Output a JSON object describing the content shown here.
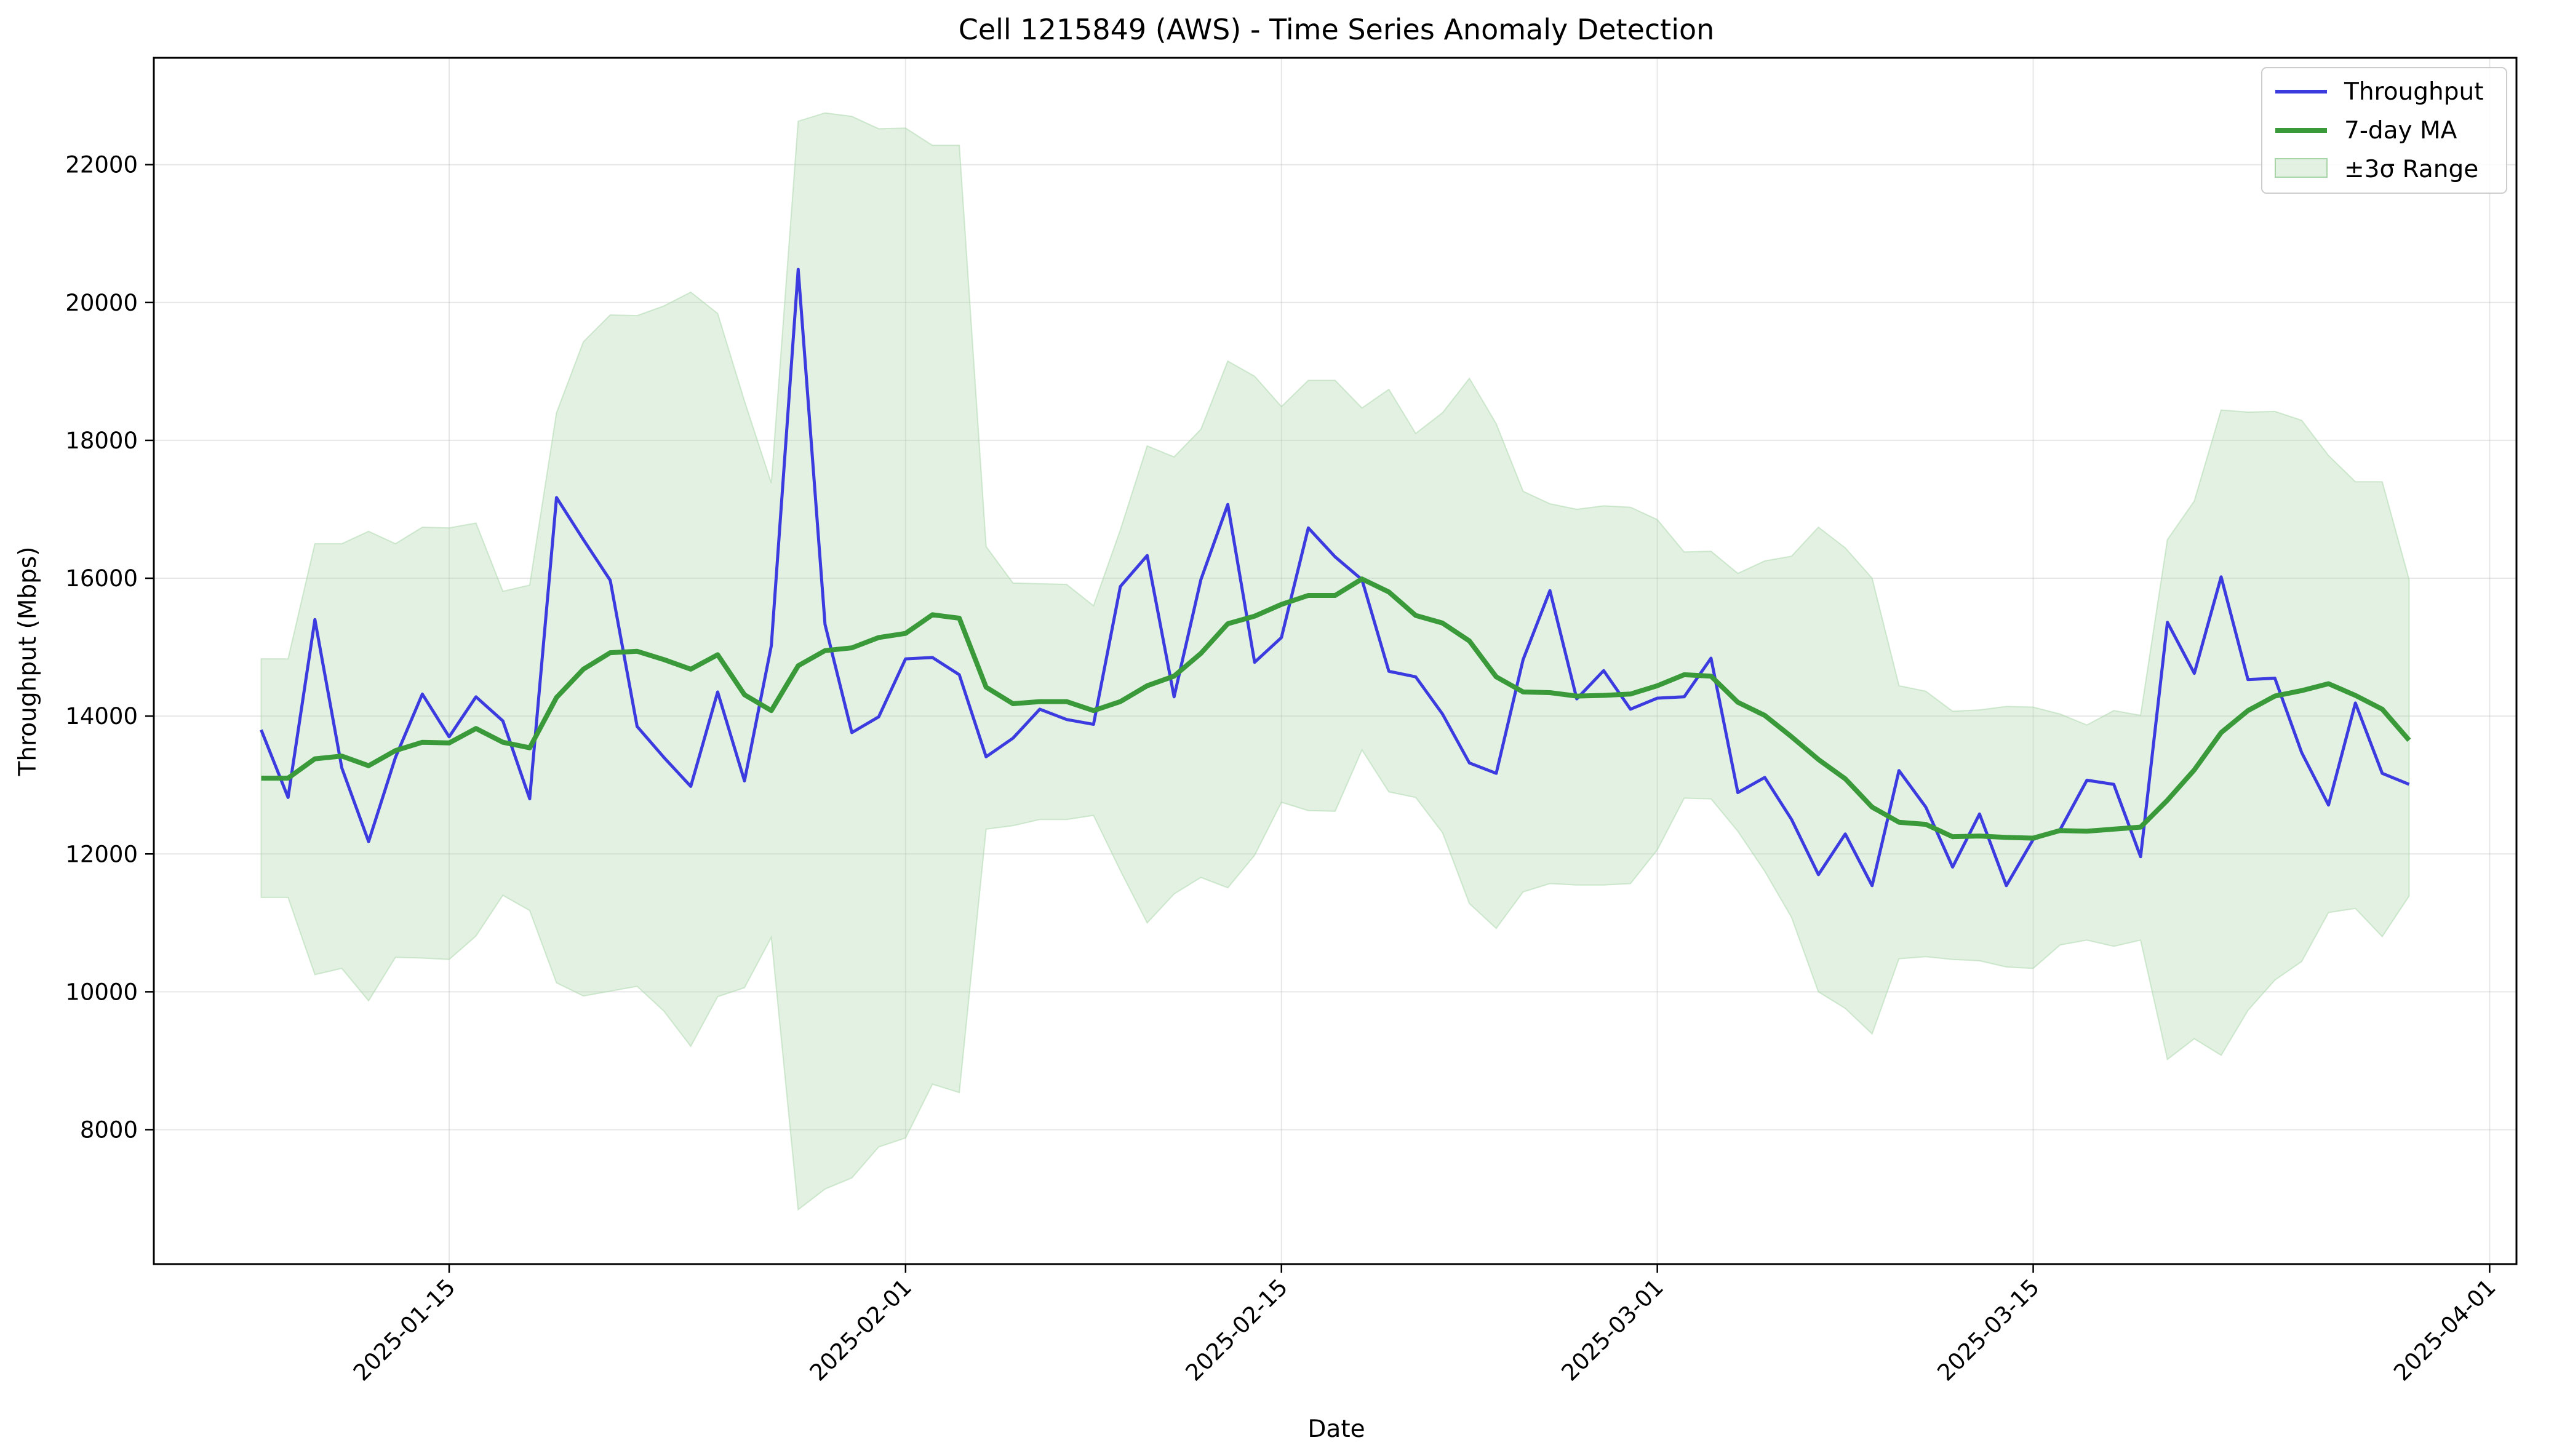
{
  "chart_data": {
    "type": "line",
    "title": "Cell 1215849 (AWS) - Time Series Anomaly Detection",
    "xlabel": "Date",
    "ylabel": "Throughput (Mbps)",
    "x_ticks": [
      "2025-01-15",
      "2025-02-01",
      "2025-02-15",
      "2025-03-01",
      "2025-03-15",
      "2025-04-01"
    ],
    "y_ticks": [
      "8000",
      "10000",
      "12000",
      "14000",
      "16000",
      "18000",
      "20000",
      "22000"
    ],
    "x_range": [
      "2025-01-04",
      "2025-04-02"
    ],
    "ylim": [
      6050,
      23550
    ],
    "grid": true,
    "legend_position": "top-right",
    "x_start": "2025-01-08",
    "x_end": "2025-03-29",
    "series": [
      {
        "name": "Throughput",
        "type": "line",
        "color": "#3b3be0",
        "values": [
          13800,
          12820,
          15400,
          13250,
          12180,
          13400,
          14320,
          13700,
          14280,
          13930,
          12800,
          17170,
          16560,
          15970,
          13850,
          13400,
          12980,
          14350,
          13060,
          15020,
          20480,
          15330,
          13760,
          13990,
          14830,
          14850,
          14600,
          13410,
          13680,
          14100,
          13950,
          13880,
          15880,
          16330,
          14280,
          15980,
          17070,
          14780,
          15140,
          16730,
          16310,
          15980,
          14650,
          14570,
          14030,
          13320,
          13170,
          14820,
          15820,
          14250,
          14660,
          14100,
          14260,
          14280,
          14840,
          12890,
          13110,
          12500,
          11700,
          12290,
          11540,
          13210,
          12680,
          11810,
          12580,
          11540,
          12210,
          12350,
          13070,
          13010,
          11960,
          15360,
          14620,
          16020,
          14530,
          14550,
          13470,
          12710,
          14190,
          13170,
          13010
        ]
      },
      {
        "name": "7-day MA",
        "type": "line",
        "color": "#3a9a3a",
        "values": [
          13100,
          13100,
          13380,
          13420,
          13280,
          13500,
          13620,
          13610,
          13820,
          13620,
          13540,
          14270,
          14680,
          14920,
          14940,
          14820,
          14680,
          14890,
          14310,
          14080,
          14730,
          14950,
          14990,
          15140,
          15200,
          15470,
          15420,
          14420,
          14180,
          14210,
          14210,
          14080,
          14210,
          14440,
          14580,
          14910,
          15340,
          15450,
          15620,
          15750,
          15750,
          15990,
          15800,
          15460,
          15350,
          15090,
          14570,
          14350,
          14340,
          14290,
          14300,
          14320,
          14440,
          14600,
          14580,
          14200,
          14010,
          13700,
          13370,
          13090,
          12680,
          12460,
          12430,
          12250,
          12260,
          12240,
          12230,
          12340,
          12330,
          12360,
          12390,
          12780,
          13220,
          13760,
          14080,
          14290,
          14370,
          14470,
          14300,
          14100,
          13650
        ]
      },
      {
        "name": "±3σ Range",
        "type": "band",
        "color": "#a8d5a8",
        "upper": [
          14830,
          14830,
          16500,
          16500,
          16680,
          16500,
          16740,
          16730,
          16800,
          15810,
          15900,
          18400,
          19430,
          19820,
          19810,
          19950,
          20150,
          19840,
          18570,
          17380,
          22630,
          22750,
          22700,
          22520,
          22530,
          22280,
          22280,
          16460,
          15930,
          15920,
          15910,
          15600,
          16700,
          17920,
          17760,
          18160,
          19150,
          18930,
          18490,
          18870,
          18870,
          18470,
          18740,
          18100,
          18400,
          18900,
          18240,
          17260,
          17080,
          17000,
          17050,
          17030,
          16850,
          16380,
          16390,
          16070,
          16250,
          16320,
          16740,
          16440,
          16000,
          14440,
          14360,
          14070,
          14090,
          14140,
          14130,
          14030,
          13870,
          14080,
          14010,
          16560,
          17120,
          18440,
          18410,
          18420,
          18290,
          17780,
          17400,
          17400,
          15980
        ],
        "lower": [
          11370,
          11370,
          10250,
          10340,
          9870,
          10500,
          10490,
          10470,
          10810,
          11400,
          11180,
          10130,
          9940,
          10010,
          10080,
          9720,
          9210,
          9930,
          10060,
          10790,
          6840,
          7140,
          7300,
          7750,
          7880,
          8660,
          8540,
          12360,
          12410,
          12500,
          12500,
          12560,
          11760,
          11000,
          11420,
          11660,
          11510,
          11980,
          12750,
          12630,
          12620,
          13510,
          12900,
          12820,
          12310,
          11280,
          10920,
          11450,
          11570,
          11550,
          11550,
          11570,
          12060,
          12810,
          12800,
          12330,
          11750,
          11080,
          10000,
          9760,
          9390,
          10480,
          10510,
          10470,
          10450,
          10360,
          10340,
          10680,
          10750,
          10660,
          10750,
          9020,
          9320,
          9080,
          9730,
          10170,
          10440,
          11150,
          11210,
          10800,
          11390
        ]
      }
    ]
  }
}
